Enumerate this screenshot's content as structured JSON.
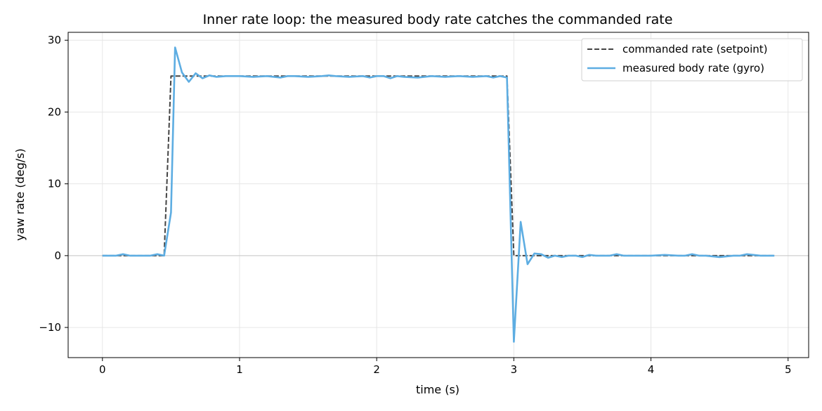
{
  "chart_data": {
    "type": "line",
    "title": "Inner rate loop: the measured body rate catches the commanded rate",
    "xlabel": "time (s)",
    "ylabel": "yaw rate (deg/s)",
    "xlim": [
      -0.25,
      5.15
    ],
    "ylim": [
      -14.2,
      31.1
    ],
    "xticks": [
      0,
      1,
      2,
      3,
      4,
      5
    ],
    "xtick_labels": [
      "0",
      "1",
      "2",
      "3",
      "4",
      "5"
    ],
    "yticks": [
      -10,
      0,
      10,
      20,
      30
    ],
    "ytick_labels": [
      "−10",
      "0",
      "10",
      "20",
      "30"
    ],
    "grid": true,
    "zero_line": true,
    "legend_position": "top-right",
    "series": [
      {
        "name": "commanded rate (setpoint)",
        "style": "dashed",
        "color": "#444444",
        "x": [
          0.0,
          0.45,
          0.5,
          2.95,
          3.0,
          4.9
        ],
        "y": [
          0,
          0,
          25,
          25,
          0,
          0
        ]
      },
      {
        "name": "measured body rate (gyro)",
        "style": "solid",
        "color": "#5dade2",
        "x": [
          0.0,
          0.05,
          0.1,
          0.15,
          0.2,
          0.25,
          0.3,
          0.35,
          0.4,
          0.45,
          0.5,
          0.53,
          0.58,
          0.63,
          0.68,
          0.73,
          0.78,
          0.83,
          0.9,
          1.0,
          1.1,
          1.2,
          1.3,
          1.35,
          1.4,
          1.5,
          1.6,
          1.65,
          1.7,
          1.8,
          1.9,
          1.95,
          2.0,
          2.05,
          2.1,
          2.15,
          2.2,
          2.3,
          2.4,
          2.5,
          2.6,
          2.7,
          2.8,
          2.85,
          2.9,
          2.95,
          3.0,
          3.05,
          3.1,
          3.15,
          3.2,
          3.25,
          3.3,
          3.35,
          3.4,
          3.45,
          3.5,
          3.55,
          3.6,
          3.7,
          3.75,
          3.8,
          3.9,
          4.0,
          4.1,
          4.2,
          4.25,
          4.3,
          4.35,
          4.4,
          4.5,
          4.6,
          4.65,
          4.7,
          4.8,
          4.9
        ],
        "y": [
          0.0,
          0.0,
          0.0,
          0.2,
          0.0,
          0.0,
          0.0,
          0.0,
          0.2,
          0.0,
          6.0,
          29.0,
          25.5,
          24.2,
          25.4,
          24.7,
          25.1,
          24.9,
          25.0,
          25.0,
          24.9,
          25.0,
          24.8,
          25.0,
          25.0,
          24.9,
          25.0,
          25.1,
          25.0,
          24.9,
          25.0,
          24.8,
          25.0,
          25.0,
          24.7,
          25.0,
          24.9,
          24.8,
          25.0,
          24.9,
          25.0,
          24.9,
          25.0,
          24.8,
          25.0,
          24.8,
          -12.0,
          4.7,
          -1.2,
          0.3,
          0.2,
          -0.3,
          0.0,
          -0.2,
          0.0,
          0.0,
          -0.2,
          0.1,
          0.0,
          0.0,
          0.2,
          0.0,
          0.0,
          0.0,
          0.1,
          0.0,
          0.0,
          0.2,
          0.0,
          0.0,
          -0.2,
          0.0,
          0.0,
          0.2,
          0.0,
          0.0
        ]
      }
    ]
  }
}
